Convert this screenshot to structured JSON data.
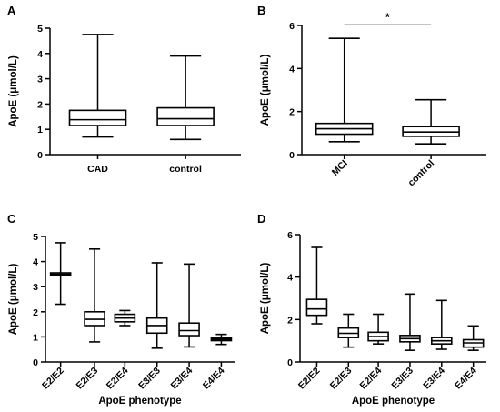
{
  "chart_data": [
    {
      "panel": "A",
      "type": "boxplot",
      "ylabel": "ApoE (μmol/L)",
      "xlabel": "",
      "ylim": [
        0,
        5
      ],
      "yticks": [
        "0",
        "1",
        "2",
        "3",
        "4",
        "5"
      ],
      "categories": [
        "CAD",
        "control"
      ],
      "boxes": [
        {
          "min": 0.7,
          "q1": 1.15,
          "median": 1.38,
          "q3": 1.75,
          "max": 4.75
        },
        {
          "min": 0.6,
          "q1": 1.15,
          "median": 1.42,
          "q3": 1.85,
          "max": 3.9
        }
      ],
      "significance": null
    },
    {
      "panel": "B",
      "type": "boxplot",
      "ylabel": "ApoE (μmol/L)",
      "xlabel": "",
      "ylim": [
        0,
        6
      ],
      "yticks": [
        "0",
        "2",
        "4",
        "6"
      ],
      "categories": [
        "MCI",
        "control"
      ],
      "boxes": [
        {
          "min": 0.6,
          "q1": 0.95,
          "median": 1.2,
          "q3": 1.45,
          "max": 5.4
        },
        {
          "min": 0.5,
          "q1": 0.85,
          "median": 1.05,
          "q3": 1.3,
          "max": 2.55
        }
      ],
      "significance": "*"
    },
    {
      "panel": "C",
      "type": "boxplot",
      "ylabel": "ApoE (μmol/L)",
      "xlabel": "ApoE phenotype",
      "ylim": [
        0,
        5
      ],
      "yticks": [
        "0",
        "1",
        "2",
        "3",
        "4",
        "5"
      ],
      "categories": [
        "E2/E2",
        "E2/E3",
        "E2/E4",
        "E3/E3",
        "E3/E4",
        "E4/E4"
      ],
      "boxes": [
        {
          "min": 2.3,
          "q1": 3.45,
          "median": 3.5,
          "q3": 3.55,
          "max": 4.75
        },
        {
          "min": 0.8,
          "q1": 1.45,
          "median": 1.7,
          "q3": 2.0,
          "max": 4.5
        },
        {
          "min": 1.45,
          "q1": 1.6,
          "median": 1.75,
          "q3": 1.9,
          "max": 2.05
        },
        {
          "min": 0.55,
          "q1": 1.15,
          "median": 1.45,
          "q3": 1.75,
          "max": 3.95
        },
        {
          "min": 0.6,
          "q1": 1.05,
          "median": 1.25,
          "q3": 1.55,
          "max": 3.9
        },
        {
          "min": 0.7,
          "q1": 0.85,
          "median": 0.9,
          "q3": 0.95,
          "max": 1.1
        }
      ],
      "significance": null
    },
    {
      "panel": "D",
      "type": "boxplot",
      "ylabel": "ApoE (μmol/L)",
      "xlabel": "ApoE phenotype",
      "ylim": [
        0,
        6
      ],
      "yticks": [
        "0",
        "2",
        "4",
        "6"
      ],
      "categories": [
        "E2/E2",
        "E2/E3",
        "E2/E4",
        "E3/E3",
        "E3/E4",
        "E4/E4"
      ],
      "boxes": [
        {
          "min": 1.8,
          "q1": 2.2,
          "median": 2.5,
          "q3": 2.95,
          "max": 5.4
        },
        {
          "min": 0.7,
          "q1": 1.15,
          "median": 1.35,
          "q3": 1.6,
          "max": 2.25
        },
        {
          "min": 0.85,
          "q1": 1.0,
          "median": 1.2,
          "q3": 1.4,
          "max": 2.25
        },
        {
          "min": 0.55,
          "q1": 0.95,
          "median": 1.1,
          "q3": 1.25,
          "max": 3.2
        },
        {
          "min": 0.6,
          "q1": 0.85,
          "median": 1.0,
          "q3": 1.15,
          "max": 2.9
        },
        {
          "min": 0.55,
          "q1": 0.7,
          "median": 0.9,
          "q3": 1.05,
          "max": 1.7
        }
      ],
      "significance": null
    }
  ]
}
